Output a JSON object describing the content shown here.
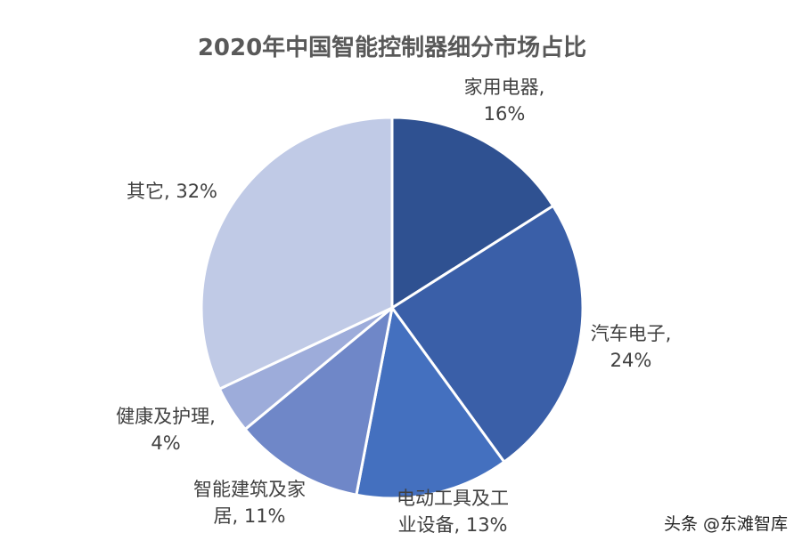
{
  "chart_data": {
    "type": "pie",
    "title": "2020年中国智能控制器细分市场占比",
    "unit": "%",
    "start": "12 o'clock",
    "direction": "clockwise",
    "slices": [
      {
        "category": "家用电器",
        "value": 16,
        "color": "#2f5191",
        "label_lines": [
          "家用电器,",
          "16%"
        ]
      },
      {
        "category": "汽车电子",
        "value": 24,
        "color": "#3a5fa8",
        "label_lines": [
          "汽车电子,",
          "24%"
        ]
      },
      {
        "category": "电动工具及工业设备",
        "value": 13,
        "color": "#4470bf",
        "label_lines": [
          "电动工具及工",
          "业设备, 13%"
        ]
      },
      {
        "category": "智能建筑及家居",
        "value": 11,
        "color": "#6f87c8",
        "label_lines": [
          "智能建筑及家",
          "居, 11%"
        ]
      },
      {
        "category": "健康及护理",
        "value": 4,
        "color": "#9dacda",
        "label_lines": [
          "健康及护理,",
          "4%"
        ]
      },
      {
        "category": "其它",
        "value": 32,
        "color": "#c0cae6",
        "label_lines": [
          "其它, 32%"
        ]
      }
    ]
  },
  "watermark": "头条 @东滩智库"
}
